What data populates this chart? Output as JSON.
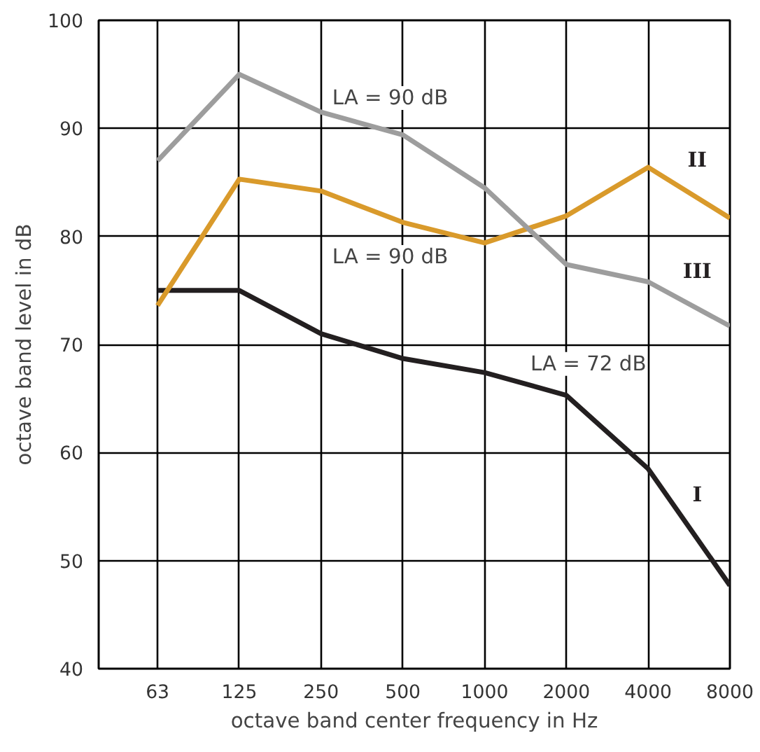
{
  "chart_data": {
    "type": "line",
    "xlabel": "octave band center frequency in Hz",
    "ylabel": "octave band level in dB",
    "categories": [
      "63",
      "125",
      "250",
      "500",
      "1000",
      "2000",
      "4000",
      "8000"
    ],
    "series": [
      {
        "name": "I",
        "color": "#231f20",
        "values": [
          75,
          75,
          71,
          68.7,
          67.4,
          65.3,
          58.5,
          47.7
        ]
      },
      {
        "name": "II",
        "color": "#d99a2b",
        "values": [
          73.6,
          85.3,
          84.2,
          81.3,
          79.4,
          81.9,
          86.4,
          81.7
        ]
      },
      {
        "name": "III",
        "color": "#9d9d9d",
        "values": [
          87,
          95,
          91.5,
          89.4,
          84.5,
          77.4,
          75.8,
          71.7
        ]
      }
    ],
    "annotations": [
      "LA = 90 dB",
      "LA = 90 dB",
      "LA = 72 dB"
    ],
    "ylim": [
      40,
      100
    ],
    "yticks": [
      40,
      50,
      60,
      70,
      80,
      90,
      100
    ],
    "grid": true,
    "marker": "none",
    "line_style": "solid"
  }
}
